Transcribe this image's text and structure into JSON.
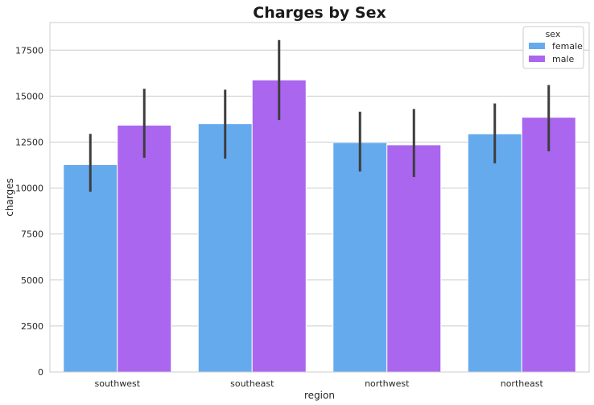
{
  "chart_data": {
    "type": "bar",
    "title": "Charges by Sex",
    "xlabel": "region",
    "ylabel": "charges",
    "categories": [
      "southwest",
      "southeast",
      "northwest",
      "northeast"
    ],
    "ylim": [
      0,
      19000
    ],
    "yticks": [
      0,
      2500,
      5000,
      7500,
      10000,
      12500,
      15000,
      17500
    ],
    "grid": "horizontal",
    "legend": {
      "title": "sex",
      "placement": "top-right"
    },
    "series": [
      {
        "name": "female",
        "color": "#66aaee",
        "values": [
          11275,
          13500,
          12480,
          12950
        ],
        "ci_low": [
          9800,
          11600,
          10900,
          11350
        ],
        "ci_high": [
          12950,
          15350,
          14150,
          14600
        ]
      },
      {
        "name": "male",
        "color": "#aa66ee",
        "values": [
          13420,
          15880,
          12350,
          13850
        ],
        "ci_low": [
          11650,
          13700,
          10600,
          12000
        ],
        "ci_high": [
          15400,
          18050,
          14300,
          15600
        ]
      }
    ],
    "errorbar_color": "#3d3d3d"
  }
}
